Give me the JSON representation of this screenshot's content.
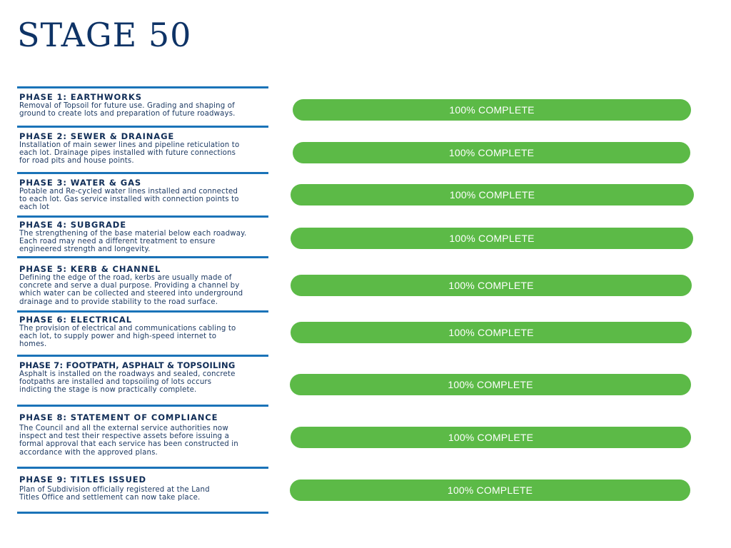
{
  "page": {
    "title": "STAGE 50"
  },
  "status_color": "#5cba47",
  "phases": [
    {
      "title": "PHASE 1: EARTHWORKS",
      "desc": [
        "Removal of Topsoil for future use. Grading and shaping of",
        "ground to create lots and preparation of future roadways."
      ],
      "progress": 100,
      "status": "100% COMPLETE"
    },
    {
      "title": "PHASE 2: SEWER & DRAINAGE",
      "desc": [
        "Installation of main sewer lines and pipeline reticulation to",
        "each lot. Drainage pipes installed with future connections",
        "for road pits and house points."
      ],
      "progress": 100,
      "status": "100% COMPLETE"
    },
    {
      "title": "PHASE 3: WATER & GAS",
      "desc": [
        "Potable and Re-cycled water lines installed and connected",
        "to each lot. Gas service installed with connection points to",
        "each lot"
      ],
      "progress": 100,
      "status": "100% COMPLETE"
    },
    {
      "title": "PHASE 4: SUBGRADE",
      "desc": [
        "The strengthening of the base material below each roadway.",
        "Each road may need a different treatment to ensure",
        "engineered strength and longevity."
      ],
      "progress": 100,
      "status": "100% COMPLETE"
    },
    {
      "title": "PHASE 5: KERB & CHANNEL",
      "desc": [
        "Defining the edge of the road, kerbs are usually made of",
        "concrete and serve a dual purpose. Providing a channel by",
        "which water can be collected and steered into underground",
        "drainage and to provide stability to the road surface."
      ],
      "progress": 100,
      "status": "100% COMPLETE"
    },
    {
      "title": "PHASE 6: ELECTRICAL",
      "desc": [
        "The provision of electrical and communications cabling to",
        "each lot, to supply power and high-speed internet to",
        "homes."
      ],
      "progress": 100,
      "status": "100% COMPLETE"
    },
    {
      "title": "PHASE 7: FOOTPATH, ASPHALT & TOPSOILING",
      "desc": [
        "Asphalt is installed on the roadways and sealed, concrete",
        "footpaths are installed and topsoiling of lots occurs",
        "indicting the stage is now practically complete."
      ],
      "progress": 100,
      "status": "100% COMPLETE"
    },
    {
      "title": "PHASE 8: STATEMENT OF COMPLIANCE",
      "desc": [
        "The Council and all the external service authorities now",
        "inspect and test their respective assets before issuing a",
        "formal approval that each service has been constructed in",
        "accordance with the approved plans."
      ],
      "progress": 100,
      "status": "100% COMPLETE"
    },
    {
      "title": "PHASE 9: TITLES ISSUED",
      "desc": [
        "Plan of Subdivision officially registered at the Land",
        "Titles Office and settlement can now take place."
      ],
      "progress": 100,
      "status": "100% COMPLETE"
    }
  ]
}
